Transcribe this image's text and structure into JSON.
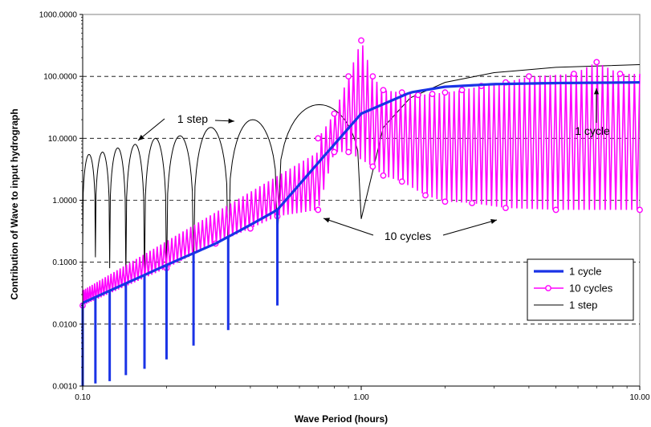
{
  "chart_data": {
    "type": "line",
    "title": "",
    "xlabel": "Wave Period (hours)",
    "ylabel": "Contribution of Wave to input  hydrograph",
    "xscale": "log",
    "yscale": "log",
    "xlim": [
      0.1,
      10
    ],
    "ylim": [
      0.001,
      1000
    ],
    "x_ticks": [
      {
        "value": 0.1,
        "label": "0.10"
      },
      {
        "value": 1,
        "label": "1.00"
      },
      {
        "value": 10,
        "label": "10.00"
      }
    ],
    "y_ticks": [
      {
        "value": 0.001,
        "label": "0.0010"
      },
      {
        "value": 0.01,
        "label": "0.0100"
      },
      {
        "value": 0.1,
        "label": "0.1000"
      },
      {
        "value": 1,
        "label": "1.0000"
      },
      {
        "value": 10,
        "label": "10.0000"
      },
      {
        "value": 100,
        "label": "100.0000"
      },
      {
        "value": 1000,
        "label": "1000.0000"
      }
    ],
    "grid": "horizontal dashed",
    "legend_position": "bottom-right",
    "series": [
      {
        "name": "1 cycle",
        "color": "#1a33e6",
        "marker": "none",
        "description": "Smooth rising curve from 0.02 at 0.1 h to plateau ~80 at 10 h, with deep notches at T = 1/n hours",
        "notches": [
          {
            "x": 0.5,
            "y": 0.02
          },
          {
            "x": 0.333,
            "y": 0.008
          },
          {
            "x": 0.25,
            "y": 0.0045
          },
          {
            "x": 0.2,
            "y": 0.0027
          },
          {
            "x": 0.1667,
            "y": 0.0019
          },
          {
            "x": 0.1429,
            "y": 0.0015
          },
          {
            "x": 0.125,
            "y": 0.0012
          },
          {
            "x": 0.1111,
            "y": 0.0011
          },
          {
            "x": 0.1,
            "y": 0.001
          }
        ],
        "points": [
          {
            "x": 0.1,
            "y": 0.022
          },
          {
            "x": 0.2,
            "y": 0.09
          },
          {
            "x": 0.3,
            "y": 0.2
          },
          {
            "x": 0.4,
            "y": 0.4
          },
          {
            "x": 0.5,
            "y": 0.7
          },
          {
            "x": 0.7,
            "y": 4
          },
          {
            "x": 1.0,
            "y": 25
          },
          {
            "x": 1.5,
            "y": 55
          },
          {
            "x": 2.0,
            "y": 68
          },
          {
            "x": 3.0,
            "y": 75
          },
          {
            "x": 5.0,
            "y": 78
          },
          {
            "x": 10.0,
            "y": 80
          }
        ]
      },
      {
        "name": "10 cycles",
        "color": "#ff00ff",
        "marker": "circle",
        "description": "Dense oscillating curve; upper envelope of peaks and lower envelope of troughs",
        "peaks": [
          {
            "x": 0.7,
            "y": 10
          },
          {
            "x": 0.8,
            "y": 25
          },
          {
            "x": 0.9,
            "y": 100
          },
          {
            "x": 1.0,
            "y": 380
          },
          {
            "x": 1.1,
            "y": 100
          },
          {
            "x": 1.2,
            "y": 60
          },
          {
            "x": 1.4,
            "y": 55
          },
          {
            "x": 1.6,
            "y": 50
          },
          {
            "x": 1.8,
            "y": 52
          },
          {
            "x": 2.0,
            "y": 55
          },
          {
            "x": 2.3,
            "y": 60
          },
          {
            "x": 2.7,
            "y": 70
          },
          {
            "x": 3.3,
            "y": 80
          },
          {
            "x": 4.0,
            "y": 100
          },
          {
            "x": 5.8,
            "y": 110
          },
          {
            "x": 7.0,
            "y": 170
          },
          {
            "x": 8.5,
            "y": 110
          }
        ],
        "troughs": [
          {
            "x": 0.1,
            "y": 0.02
          },
          {
            "x": 0.2,
            "y": 0.08
          },
          {
            "x": 0.3,
            "y": 0.2
          },
          {
            "x": 0.4,
            "y": 0.35
          },
          {
            "x": 0.5,
            "y": 0.55
          },
          {
            "x": 0.7,
            "y": 0.7
          },
          {
            "x": 0.8,
            "y": 6
          },
          {
            "x": 0.9,
            "y": 6
          },
          {
            "x": 1.1,
            "y": 3.5
          },
          {
            "x": 1.2,
            "y": 2.5
          },
          {
            "x": 1.4,
            "y": 2
          },
          {
            "x": 1.7,
            "y": 1.2
          },
          {
            "x": 2.0,
            "y": 0.95
          },
          {
            "x": 2.5,
            "y": 0.9
          },
          {
            "x": 3.3,
            "y": 0.75
          },
          {
            "x": 5.0,
            "y": 0.7
          },
          {
            "x": 10.0,
            "y": 0.7
          }
        ]
      },
      {
        "name": "1 step",
        "color": "#000000",
        "marker": "none",
        "description": "Arch-shaped lobes between T = 1/n with rising peaks, then curve rising to ~150 plateau",
        "lobe_peaks": [
          {
            "x": 0.105,
            "y": 5.5
          },
          {
            "x": 0.118,
            "y": 6
          },
          {
            "x": 0.133,
            "y": 7
          },
          {
            "x": 0.154,
            "y": 8
          },
          {
            "x": 0.182,
            "y": 10
          },
          {
            "x": 0.222,
            "y": 11
          },
          {
            "x": 0.286,
            "y": 15
          },
          {
            "x": 0.4,
            "y": 20
          },
          {
            "x": 0.667,
            "y": 35
          }
        ],
        "lobe_troughs": [
          {
            "x": 0.1,
            "y": 0.15
          },
          {
            "x": 0.1111,
            "y": 0.12
          },
          {
            "x": 0.125,
            "y": 0.08
          },
          {
            "x": 0.1429,
            "y": 0.06
          },
          {
            "x": 0.1667,
            "y": 0.05
          },
          {
            "x": 0.2,
            "y": 0.05
          },
          {
            "x": 0.25,
            "y": 0.06
          },
          {
            "x": 0.333,
            "y": 0.08
          },
          {
            "x": 0.5,
            "y": 0.2
          },
          {
            "x": 1.0,
            "y": 0.5
          }
        ],
        "tail_points": [
          {
            "x": 1.0,
            "y": 0.5
          },
          {
            "x": 1.2,
            "y": 15
          },
          {
            "x": 1.5,
            "y": 45
          },
          {
            "x": 2.0,
            "y": 80
          },
          {
            "x": 3.0,
            "y": 115
          },
          {
            "x": 5.0,
            "y": 140
          },
          {
            "x": 10.0,
            "y": 155
          }
        ]
      }
    ],
    "annotations": [
      {
        "text": "1 step",
        "target_series": "1 step"
      },
      {
        "text": "1 cycle",
        "target_series": "1 cycle"
      },
      {
        "text": "10 cycles",
        "target_series": "10 cycles"
      }
    ]
  }
}
